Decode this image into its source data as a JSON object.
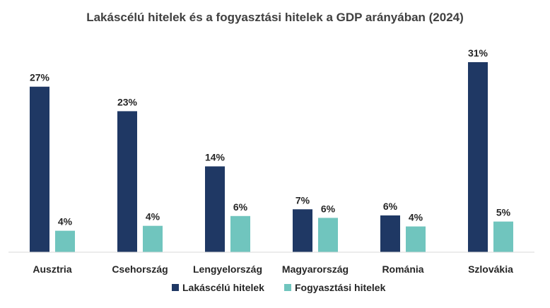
{
  "chart_data": {
    "type": "bar",
    "title": "Lakáscélú hitelek és a fogyasztási hitelek a GDP arányában (2024)",
    "categories": [
      "Ausztria",
      "Csehország",
      "Lengyelország",
      "Magyarország",
      "Románia",
      "Szlovákia"
    ],
    "series": [
      {
        "name": "Lakáscélú hitelek",
        "values": [
          27,
          23,
          14,
          7,
          6,
          31
        ],
        "labels": [
          "27%",
          "23%",
          "14%",
          "7%",
          "6%",
          "31%"
        ],
        "color": "#1F3864"
      },
      {
        "name": "Fogyasztási hitelek",
        "values": [
          3.5,
          4.3,
          5.9,
          5.6,
          4.2,
          5.0
        ],
        "labels": [
          "4%",
          "4%",
          "6%",
          "6%",
          "4%",
          "5%"
        ],
        "color": "#70C5BE"
      }
    ],
    "xlabel": "",
    "ylabel": "",
    "ylim": [
      0,
      31
    ],
    "grid": false,
    "legend_position": "bottom",
    "axis_color": "#D9D9D9"
  }
}
